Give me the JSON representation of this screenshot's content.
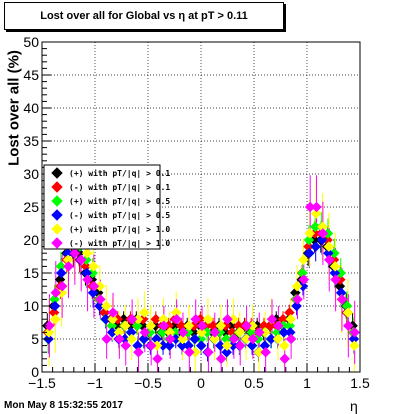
{
  "chart_data": {
    "type": "scatter",
    "title": "Lost over all for Global vs   η at pT > 0.11",
    "ylabel": "Lost over all (%)",
    "xlabel": "η",
    "timestamp": "Mon May  8 15:32:55 2017",
    "xlim": [
      -1.5,
      1.5
    ],
    "ylim": [
      0,
      50
    ],
    "x_ticks": [
      "−1.5",
      "−1",
      "−0.5",
      "0",
      "0.5",
      "1",
      "1.5"
    ],
    "y_ticks": [
      "0",
      "5",
      "10",
      "15",
      "20",
      "25",
      "30",
      "35",
      "40",
      "45",
      "50"
    ],
    "grid": true,
    "legend_position": "left-middle",
    "x": [
      -1.44,
      -1.38,
      -1.32,
      -1.26,
      -1.2,
      -1.14,
      -1.08,
      -1.02,
      -0.96,
      -0.9,
      -0.84,
      -0.78,
      -0.72,
      -0.66,
      -0.6,
      -0.54,
      -0.48,
      -0.42,
      -0.36,
      -0.3,
      -0.24,
      -0.18,
      -0.12,
      -0.06,
      0.0,
      0.06,
      0.12,
      0.18,
      0.24,
      0.3,
      0.36,
      0.42,
      0.48,
      0.54,
      0.6,
      0.66,
      0.72,
      0.78,
      0.84,
      0.9,
      0.96,
      1.02,
      1.08,
      1.14,
      1.2,
      1.26,
      1.32,
      1.38,
      1.44
    ],
    "series": [
      {
        "name": "(+) with pT/|q| > 0.1",
        "color": "#000000",
        "marker": "diamond",
        "values": [
          7,
          10,
          14,
          18,
          19,
          18,
          15,
          14,
          12,
          9,
          8,
          7,
          8,
          7,
          8,
          7,
          6,
          7,
          6,
          6,
          7,
          6,
          7,
          6,
          7,
          7,
          6,
          7,
          6,
          7,
          6,
          7,
          6,
          7,
          6,
          7,
          8,
          7,
          8,
          12,
          14,
          18,
          20,
          20,
          19,
          16,
          13,
          10,
          7
        ]
      },
      {
        "name": "(-) with pT/|q| > 0.1",
        "color": "#ff0000",
        "marker": "diamond",
        "values": [
          6,
          9,
          13,
          17,
          18,
          17,
          16,
          13,
          11,
          9,
          8,
          8,
          7,
          8,
          7,
          8,
          6,
          8,
          7,
          7,
          8,
          7,
          6,
          7,
          8,
          7,
          7,
          6,
          7,
          6,
          7,
          7,
          7,
          6,
          7,
          7,
          7,
          8,
          9,
          11,
          15,
          19,
          21,
          21,
          20,
          17,
          14,
          9,
          6
        ]
      },
      {
        "name": "(+) with pT/|q| > 0.5",
        "color": "#00ff00",
        "marker": "diamond",
        "values": [
          5,
          11,
          16,
          19,
          20,
          19,
          17,
          15,
          11,
          8,
          7,
          6,
          7,
          6,
          7,
          5,
          6,
          5,
          6,
          5,
          6,
          5,
          6,
          5,
          5,
          6,
          5,
          6,
          5,
          5,
          6,
          5,
          6,
          5,
          6,
          5,
          6,
          7,
          7,
          11,
          15,
          20,
          22,
          22,
          21,
          18,
          15,
          10,
          6
        ]
      },
      {
        "name": "(-) with pT/|q| > 0.5",
        "color": "#0000ff",
        "marker": "diamond",
        "values": [
          5,
          10,
          15,
          18,
          18,
          17,
          15,
          12,
          10,
          8,
          6,
          5,
          5,
          6,
          4,
          5,
          4,
          5,
          4,
          4,
          5,
          4,
          4,
          5,
          4,
          3,
          5,
          4,
          3,
          4,
          4,
          5,
          4,
          3,
          4,
          5,
          5,
          6,
          6,
          10,
          13,
          18,
          19,
          20,
          18,
          15,
          12,
          9,
          5
        ]
      },
      {
        "name": "(+) with pT/|q| > 1.0",
        "color": "#ffff00",
        "marker": "diamond",
        "values": [
          6,
          8,
          12,
          17,
          19,
          20,
          18,
          16,
          13,
          10,
          8,
          6,
          7,
          5,
          8,
          9,
          7,
          4,
          8,
          6,
          9,
          5,
          7,
          3,
          6,
          8,
          5,
          7,
          4,
          8,
          6,
          5,
          7,
          3,
          6,
          8,
          5,
          4,
          8,
          13,
          17,
          21,
          24,
          22,
          19,
          16,
          11,
          9,
          4
        ]
      },
      {
        "name": "(-) with pT/|q| > 1.0",
        "color": "#ff00ff",
        "marker": "diamond",
        "values": [
          7,
          12,
          13,
          16,
          18,
          17,
          14,
          13,
          11,
          5,
          9,
          5,
          4,
          8,
          3,
          6,
          4,
          2,
          7,
          5,
          8,
          6,
          3,
          8,
          7,
          3,
          6,
          2,
          8,
          5,
          4,
          7,
          5,
          6,
          3,
          8,
          7,
          2,
          5,
          11,
          14,
          25,
          25,
          21,
          17,
          14,
          11,
          7,
          6
        ]
      }
    ]
  }
}
